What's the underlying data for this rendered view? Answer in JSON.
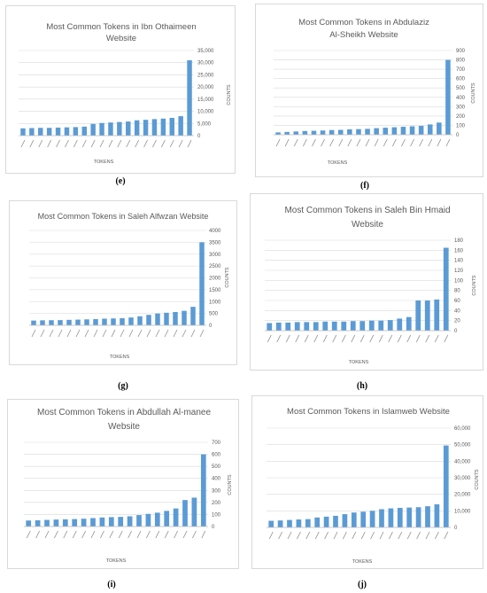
{
  "charts": [
    {
      "caption": "(e)",
      "chart_data": {
        "type": "bar",
        "title": [
          "Most Common Tokens in Ibn Othaimeen",
          "Website"
        ],
        "xlabel": "TOKENS",
        "ylabel": "COUNTS",
        "ylim": [
          0,
          35000
        ],
        "yticks": [
          "0",
          "5,000",
          "10,000",
          "15,000",
          "20,000",
          "25,000",
          "30,000",
          "35,000"
        ],
        "ytick_values": [
          0,
          5000,
          10000,
          15000,
          20000,
          25000,
          30000,
          35000
        ],
        "categories": [
          "",
          "",
          "",
          "",
          "",
          "",
          "",
          "",
          "",
          "",
          "",
          "",
          "",
          "",
          "",
          "",
          "",
          "",
          "",
          ""
        ],
        "values": [
          3000,
          3100,
          3200,
          3200,
          3300,
          3400,
          3500,
          3700,
          4800,
          5200,
          5400,
          5600,
          5800,
          6300,
          6500,
          6800,
          7000,
          7300,
          8000,
          31000
        ],
        "series_color": "#5b9bd5",
        "gridlines": true
      }
    },
    {
      "caption": "(f)",
      "chart_data": {
        "type": "bar",
        "title": [
          "Most Common Tokens in Abdulaziz",
          "Al-Sheikh Website"
        ],
        "xlabel": "TOKENS",
        "ylabel": "COUNTS",
        "ylim": [
          0,
          900
        ],
        "yticks": [
          "0",
          "100",
          "200",
          "300",
          "400",
          "500",
          "600",
          "700",
          "800",
          "900"
        ],
        "ytick_values": [
          0,
          100,
          200,
          300,
          400,
          500,
          600,
          700,
          800,
          900
        ],
        "categories": [
          "",
          "",
          "",
          "",
          "",
          "",
          "",
          "",
          "",
          "",
          "",
          "",
          "",
          "",
          "",
          "",
          "",
          "",
          "",
          ""
        ],
        "values": [
          25,
          30,
          35,
          40,
          42,
          45,
          50,
          52,
          58,
          60,
          63,
          70,
          75,
          80,
          85,
          90,
          95,
          110,
          130,
          800
        ],
        "series_color": "#5b9bd5",
        "gridlines": true
      }
    },
    {
      "caption": "(g)",
      "chart_data": {
        "type": "bar",
        "title": [
          "Most Common Tokens in Saleh Alfwzan Website"
        ],
        "xlabel": "TOKENS",
        "ylabel": "COUNTS",
        "ylim": [
          0,
          4000
        ],
        "yticks": [
          "0",
          "500",
          "1000",
          "1500",
          "2000",
          "2500",
          "3000",
          "3500",
          "4000"
        ],
        "ytick_values": [
          0,
          500,
          1000,
          1500,
          2000,
          2500,
          3000,
          3500,
          4000
        ],
        "categories": [
          "",
          "",
          "",
          "",
          "",
          "",
          "",
          "",
          "",
          "",
          "",
          "",
          "",
          "",
          "",
          "",
          "",
          "",
          "",
          ""
        ],
        "values": [
          200,
          210,
          215,
          220,
          230,
          240,
          250,
          260,
          280,
          290,
          300,
          330,
          380,
          440,
          500,
          530,
          560,
          610,
          780,
          3500
        ],
        "series_color": "#5b9bd5",
        "gridlines": true
      }
    },
    {
      "caption": "(h)",
      "chart_data": {
        "type": "bar",
        "title": [
          "Most Common Tokens in Saleh Bin Hmaid",
          "Website"
        ],
        "xlabel": "TOKENS",
        "ylabel": "COUNTS",
        "ylim": [
          0,
          180
        ],
        "yticks": [
          "0",
          "20",
          "40",
          "60",
          "80",
          "100",
          "120",
          "140",
          "160",
          "180"
        ],
        "ytick_values": [
          0,
          20,
          40,
          60,
          80,
          100,
          120,
          140,
          160,
          180
        ],
        "categories": [
          "",
          "",
          "",
          "",
          "",
          "",
          "",
          "",
          "",
          "",
          "",
          "",
          "",
          "",
          "",
          "",
          "",
          "",
          "",
          ""
        ],
        "values": [
          15,
          16,
          16,
          17,
          17,
          17,
          18,
          18,
          18,
          19,
          19,
          20,
          20,
          21,
          24,
          27,
          60,
          60,
          62,
          165
        ],
        "series_color": "#5b9bd5",
        "gridlines": true
      }
    },
    {
      "caption": "(i)",
      "chart_data": {
        "type": "bar",
        "title": [
          "Most Common Tokens in Abdullah Al-manee",
          "Website"
        ],
        "xlabel": "TOKENS",
        "ylabel": "COUNTS",
        "ylim": [
          0,
          700
        ],
        "yticks": [
          "0",
          "100",
          "200",
          "300",
          "400",
          "500",
          "600",
          "700"
        ],
        "ytick_values": [
          0,
          100,
          200,
          300,
          400,
          500,
          600,
          700
        ],
        "categories": [
          "",
          "",
          "",
          "",
          "",
          "",
          "",
          "",
          "",
          "",
          "",
          "",
          "",
          "",
          "",
          "",
          "",
          "",
          "",
          ""
        ],
        "values": [
          50,
          52,
          55,
          58,
          60,
          62,
          65,
          70,
          75,
          78,
          80,
          85,
          95,
          105,
          115,
          130,
          150,
          220,
          240,
          600
        ],
        "series_color": "#5b9bd5",
        "gridlines": true
      }
    },
    {
      "caption": "(j)",
      "chart_data": {
        "type": "bar",
        "title": [
          "Most Common Tokens in Islamweb Website"
        ],
        "xlabel": "TOKENS",
        "ylabel": "COUNTS",
        "ylim": [
          0,
          60000
        ],
        "yticks": [
          "0",
          "10,000",
          "20,000",
          "30,000",
          "40,000",
          "50,000",
          "60,000"
        ],
        "ytick_values": [
          0,
          10000,
          20000,
          30000,
          40000,
          50000,
          60000
        ],
        "categories": [
          "",
          "",
          "",
          "",
          "",
          "",
          "",
          "",
          "",
          "",
          "",
          "",
          "",
          "",
          "",
          "",
          "",
          "",
          "",
          ""
        ],
        "values": [
          4000,
          4200,
          4500,
          4800,
          5000,
          6000,
          6500,
          7000,
          8000,
          9000,
          9500,
          10000,
          11000,
          11500,
          11800,
          12000,
          12200,
          12800,
          14000,
          49500
        ],
        "series_color": "#5b9bd5",
        "gridlines": true
      }
    }
  ]
}
